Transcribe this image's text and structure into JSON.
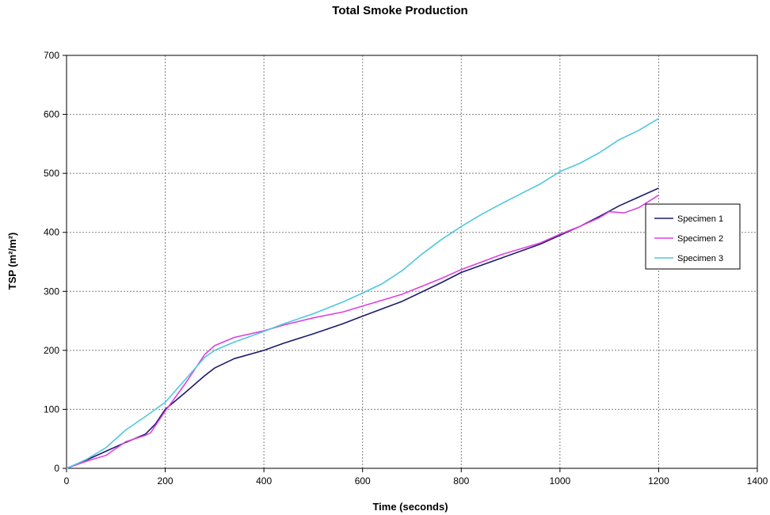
{
  "chart_data": {
    "type": "line",
    "title": "Total Smoke Production",
    "xlabel": "Time (seconds)",
    "ylabel": "TSP (m²/m²)",
    "xlim": [
      0,
      1400
    ],
    "ylim": [
      0,
      700
    ],
    "xticks": [
      0,
      200,
      400,
      600,
      800,
      1000,
      1200,
      1400
    ],
    "yticks": [
      0,
      100,
      200,
      300,
      400,
      500,
      600,
      700
    ],
    "grid": true,
    "legend_position": "right",
    "series": [
      {
        "name": "Specimen 1",
        "color": "#1a1a6e",
        "x": [
          0,
          40,
          80,
          120,
          160,
          180,
          200,
          240,
          280,
          300,
          340,
          400,
          440,
          500,
          560,
          600,
          680,
          760,
          800,
          880,
          960,
          1000,
          1040,
          1080,
          1120,
          1160,
          1200
        ],
        "y": [
          0,
          14,
          29,
          44,
          58,
          75,
          100,
          128,
          157,
          170,
          186,
          200,
          212,
          228,
          245,
          258,
          283,
          315,
          332,
          356,
          380,
          395,
          410,
          427,
          445,
          460,
          475
        ]
      },
      {
        "name": "Specimen 2",
        "color": "#e040e0",
        "x": [
          0,
          40,
          80,
          120,
          160,
          170,
          200,
          240,
          280,
          300,
          340,
          400,
          440,
          500,
          560,
          600,
          680,
          760,
          800,
          880,
          960,
          1000,
          1040,
          1080,
          1100,
          1130,
          1160,
          1200
        ],
        "y": [
          0,
          12,
          22,
          45,
          56,
          60,
          97,
          143,
          193,
          208,
          222,
          233,
          243,
          255,
          265,
          275,
          295,
          322,
          337,
          362,
          382,
          397,
          410,
          425,
          435,
          433,
          442,
          463
        ]
      },
      {
        "name": "Specimen 3",
        "color": "#4fc8e0",
        "x": [
          0,
          40,
          80,
          120,
          160,
          200,
          240,
          280,
          300,
          340,
          400,
          440,
          500,
          560,
          600,
          640,
          680,
          720,
          760,
          800,
          840,
          880,
          920,
          960,
          1000,
          1040,
          1080,
          1120,
          1160,
          1200
        ],
        "y": [
          0,
          15,
          35,
          65,
          88,
          112,
          150,
          188,
          200,
          214,
          232,
          245,
          262,
          282,
          297,
          313,
          335,
          363,
          388,
          410,
          430,
          448,
          465,
          482,
          503,
          517,
          535,
          557,
          573,
          593
        ]
      }
    ]
  }
}
